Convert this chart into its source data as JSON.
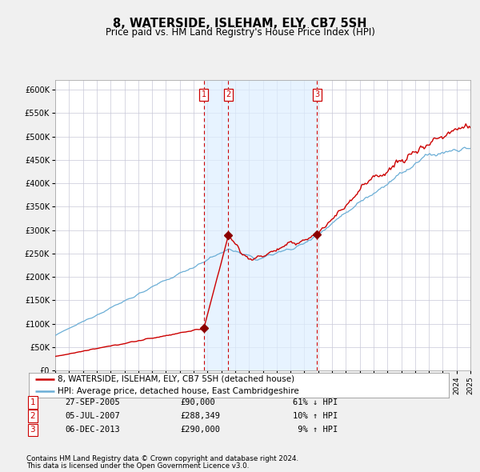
{
  "title": "8, WATERSIDE, ISLEHAM, ELY, CB7 5SH",
  "subtitle": "Price paid vs. HM Land Registry's House Price Index (HPI)",
  "ylim": [
    0,
    620000
  ],
  "yticks": [
    0,
    50000,
    100000,
    150000,
    200000,
    250000,
    300000,
    350000,
    400000,
    450000,
    500000,
    550000,
    600000
  ],
  "ytick_labels": [
    "£0",
    "£50K",
    "£100K",
    "£150K",
    "£200K",
    "£250K",
    "£300K",
    "£350K",
    "£400K",
    "£450K",
    "£500K",
    "£550K",
    "£600K"
  ],
  "xlim": [
    1995,
    2025
  ],
  "hpi_color": "#6baed6",
  "price_color": "#cc0000",
  "fig_bg_color": "#f0f0f0",
  "plot_bg_color": "#ffffff",
  "grid_color": "#c8c8d8",
  "shade_color": "#ddeeff",
  "vline_color": "#cc0000",
  "marker_color": "#8b0000",
  "transaction_dates_decimal": [
    2005.74,
    2007.51,
    2013.92
  ],
  "transaction_prices": [
    90000,
    288349,
    290000
  ],
  "vline_shade_start": 2005.74,
  "vline_shade_end": 2013.92,
  "legend_entries": [
    "8, WATERSIDE, ISLEHAM, ELY, CB7 5SH (detached house)",
    "HPI: Average price, detached house, East Cambridgeshire"
  ],
  "table_rows": [
    [
      "1",
      "27-SEP-2005",
      "£90,000",
      "61% ↓ HPI"
    ],
    [
      "2",
      "05-JUL-2007",
      "£288,349",
      "10% ↑ HPI"
    ],
    [
      "3",
      "06-DEC-2013",
      "£290,000",
      " 9% ↑ HPI"
    ]
  ],
  "footer_line1": "Contains HM Land Registry data © Crown copyright and database right 2024.",
  "footer_line2": "This data is licensed under the Open Government Licence v3.0."
}
